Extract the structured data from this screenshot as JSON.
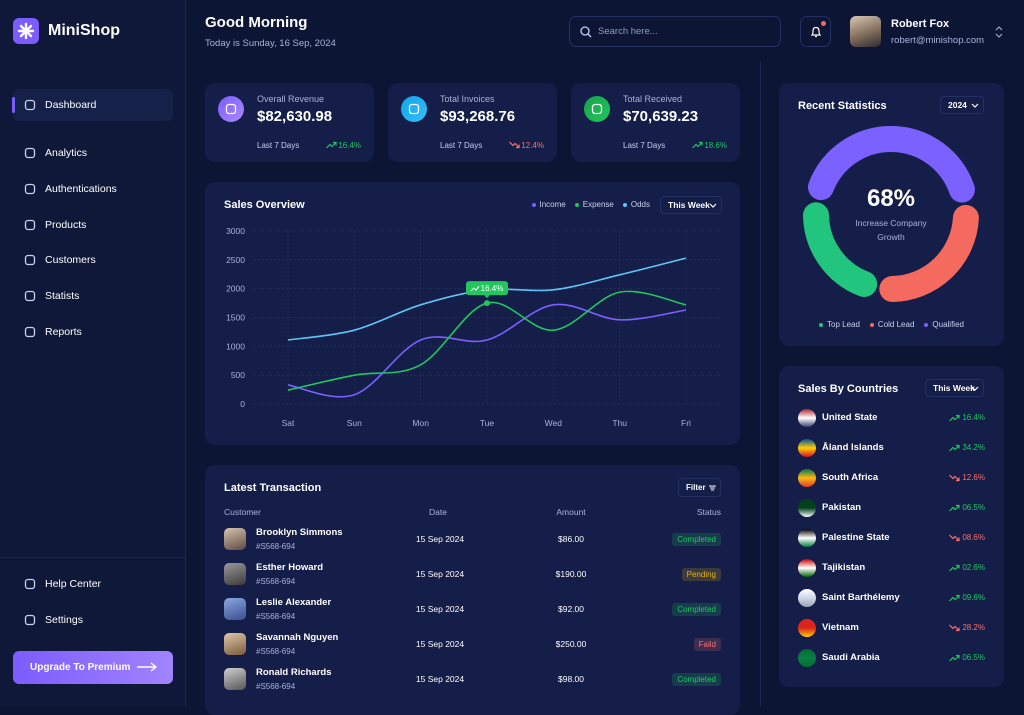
{
  "brand": "MiniShop",
  "nav": {
    "items": [
      "Dashboard",
      "Analytics",
      "Authentications",
      "Products",
      "Customers",
      "Statists",
      "Reports"
    ],
    "active": 0,
    "footer": [
      "Help Center",
      "Settings"
    ],
    "upgrade": "Upgrade To Premium"
  },
  "header": {
    "greeting": "Good Morning",
    "date": "Today is Sunday, 16 Sep, 2024",
    "search_placeholder": "Search here...",
    "user": {
      "name": "Robert Fox",
      "email": "robert@minishop.com"
    }
  },
  "stats": [
    {
      "label": "Overall Revenue",
      "value": "$82,630.98",
      "period": "Last 7 Days",
      "change": "16.4%",
      "trend": "up"
    },
    {
      "label": "Total Invoices",
      "value": "$93,268.76",
      "period": "Last 7 Days",
      "change": "12.4%",
      "trend": "down"
    },
    {
      "label": "Total Received",
      "value": "$70,639.23",
      "period": "Last 7 Days",
      "change": "18.6%",
      "trend": "up"
    }
  ],
  "sales_overview": {
    "type": "line",
    "title": "Sales Overview",
    "filter": "This Week",
    "categories": [
      "Sat",
      "Sun",
      "Mon",
      "Tue",
      "Wed",
      "Thu",
      "Fri"
    ],
    "series": [
      {
        "name": "Income",
        "color": "#7b61ff",
        "values": [
          330,
          160,
          1110,
          1110,
          1720,
          1460,
          1630
        ]
      },
      {
        "name": "Expense",
        "color": "#22c55e",
        "values": [
          240,
          500,
          680,
          1750,
          1280,
          1940,
          1720
        ]
      },
      {
        "name": "Odds",
        "color": "#60c5f5",
        "values": [
          1110,
          1280,
          1720,
          1980,
          1980,
          2240,
          2530
        ]
      }
    ],
    "ylim": [
      0,
      3000
    ],
    "yticks": [
      0,
      500,
      1000,
      1500,
      2000,
      2500,
      3000
    ],
    "grid": true,
    "annotation": "16.4%"
  },
  "transactions": {
    "title": "Latest Transaction",
    "filter": "Filter",
    "columns": [
      "Customer",
      "Date",
      "Amount",
      "Status"
    ],
    "rows": [
      {
        "name": "Brooklyn Simmons",
        "id": "#S568-694",
        "date": "15 Sep 2024",
        "amount": "$86.00",
        "status": "Completed",
        "status_color": "#22c55e"
      },
      {
        "name": "Esther Howard",
        "id": "#S568-694",
        "date": "15 Sep 2024",
        "amount": "$190.00",
        "status": "Pending",
        "status_color": "#eab308"
      },
      {
        "name": "Leslie Alexander",
        "id": "#S568-694",
        "date": "15 Sep 2024",
        "amount": "$92.00",
        "status": "Completed",
        "status_color": "#22c55e"
      },
      {
        "name": "Savannah Nguyen",
        "id": "#S568-694",
        "date": "15 Sep 2024",
        "amount": "$250.00",
        "status": "Faild",
        "status_color": "#f87171"
      },
      {
        "name": "Ronald Richards",
        "id": "#S568-694",
        "date": "15 Sep 2024",
        "amount": "$98.00",
        "status": "Completed",
        "status_color": "#22c55e"
      }
    ]
  },
  "recent_statistics": {
    "type": "pie",
    "title": "Recent Statistics",
    "filter": "2024",
    "center_value": "68%",
    "center_label": "Increase Company Growth",
    "segments": [
      {
        "name": "Top Lead",
        "color": "#22c57e",
        "value": 25
      },
      {
        "name": "Cold Lead",
        "color": "#f46a5e",
        "value": 30
      },
      {
        "name": "Qualified",
        "color": "#7b61ff",
        "value": 45
      }
    ]
  },
  "countries": {
    "title": "Sales By Countries",
    "filter": "This Week",
    "rows": [
      {
        "name": "United State",
        "change": "16.4%",
        "trend": "up"
      },
      {
        "name": "Åland Islands",
        "change": "34.2%",
        "trend": "up"
      },
      {
        "name": "South Africa",
        "change": "12.6%",
        "trend": "down"
      },
      {
        "name": "Pakistan",
        "change": "06.5%",
        "trend": "up"
      },
      {
        "name": "Palestine State",
        "change": "08.6%",
        "trend": "down"
      },
      {
        "name": "Tajikistan",
        "change": "02.6%",
        "trend": "up"
      },
      {
        "name": "Saint Barthélemy",
        "change": "09.6%",
        "trend": "up"
      },
      {
        "name": "Vietnam",
        "change": "28.2%",
        "trend": "down"
      },
      {
        "name": "Saudi Arabia",
        "change": "06.5%",
        "trend": "up"
      }
    ]
  }
}
